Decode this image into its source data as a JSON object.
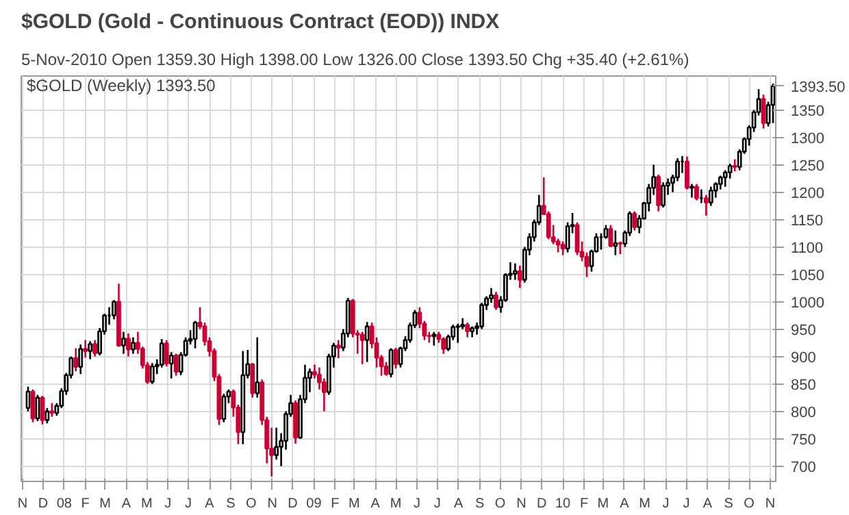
{
  "chart_data": {
    "type": "candlestick",
    "title": "$GOLD (Gold - Continuous Contract (EOD)) INDX",
    "subtitle": "5-Nov-2010",
    "annotations": [
      "Open 1359.30  High 1398.00  Low 1326.00  Close 1393.50  Chg +35.40 (+2.61%)",
      "$GOLD (Weekly) 1393.50"
    ],
    "x": [
      "2007-11-09",
      "2007-11-16",
      "2007-11-23",
      "2007-11-30",
      "2007-12-07",
      "2007-12-14",
      "2007-12-21",
      "2007-12-28",
      "2008-01-04",
      "2008-01-11",
      "2008-01-18",
      "2008-01-25",
      "2008-02-01",
      "2008-02-08",
      "2008-02-15",
      "2008-02-22",
      "2008-02-29",
      "2008-03-07",
      "2008-03-14",
      "2008-03-21",
      "2008-03-28",
      "2008-04-04",
      "2008-04-11",
      "2008-04-18",
      "2008-04-25",
      "2008-05-02",
      "2008-05-09",
      "2008-05-16",
      "2008-05-23",
      "2008-05-30",
      "2008-06-06",
      "2008-06-13",
      "2008-06-20",
      "2008-06-27",
      "2008-07-04",
      "2008-07-11",
      "2008-07-18",
      "2008-07-25",
      "2008-08-01",
      "2008-08-08",
      "2008-08-15",
      "2008-08-22",
      "2008-08-29",
      "2008-09-05",
      "2008-09-12",
      "2008-09-19",
      "2008-09-26",
      "2008-10-03",
      "2008-10-10",
      "2008-10-17",
      "2008-10-24",
      "2008-10-31",
      "2008-11-07",
      "2008-11-14",
      "2008-11-21",
      "2008-11-28",
      "2008-12-05",
      "2008-12-12",
      "2008-12-19",
      "2008-12-26",
      "2009-01-02",
      "2009-01-09",
      "2009-01-16",
      "2009-01-23",
      "2009-01-30",
      "2009-02-06",
      "2009-02-13",
      "2009-02-20",
      "2009-02-27",
      "2009-03-06",
      "2009-03-13",
      "2009-03-20",
      "2009-03-27",
      "2009-04-03",
      "2009-04-10",
      "2009-04-17",
      "2009-04-24",
      "2009-05-01",
      "2009-05-08",
      "2009-05-15",
      "2009-05-22",
      "2009-05-29",
      "2009-06-05",
      "2009-06-12",
      "2009-06-19",
      "2009-06-26",
      "2009-07-03",
      "2009-07-10",
      "2009-07-17",
      "2009-07-24",
      "2009-07-31",
      "2009-08-07",
      "2009-08-14",
      "2009-08-21",
      "2009-08-28",
      "2009-09-04",
      "2009-09-11",
      "2009-09-18",
      "2009-09-25",
      "2009-10-02",
      "2009-10-09",
      "2009-10-16",
      "2009-10-23",
      "2009-10-30",
      "2009-11-06",
      "2009-11-13",
      "2009-11-20",
      "2009-11-27",
      "2009-12-04",
      "2009-12-11",
      "2009-12-18",
      "2009-12-25",
      "2010-01-01",
      "2010-01-08",
      "2010-01-15",
      "2010-01-22",
      "2010-01-29",
      "2010-02-05",
      "2010-02-12",
      "2010-02-19",
      "2010-02-26",
      "2010-03-05",
      "2010-03-12",
      "2010-03-19",
      "2010-03-26",
      "2010-04-02",
      "2010-04-09",
      "2010-04-16",
      "2010-04-23",
      "2010-04-30",
      "2010-05-07",
      "2010-05-14",
      "2010-05-21",
      "2010-05-28",
      "2010-06-04",
      "2010-06-11",
      "2010-06-18",
      "2010-06-25",
      "2010-07-02",
      "2010-07-09",
      "2010-07-16",
      "2010-07-23",
      "2010-07-30",
      "2010-08-06",
      "2010-08-13",
      "2010-08-20",
      "2010-08-27",
      "2010-09-03",
      "2010-09-10",
      "2010-09-17",
      "2010-09-24",
      "2010-10-01",
      "2010-10-08",
      "2010-10-15",
      "2010-10-22",
      "2010-10-29",
      "2010-11-05"
    ],
    "ohlc": [
      [
        806,
        845,
        800,
        836
      ],
      [
        836,
        840,
        780,
        787
      ],
      [
        787,
        830,
        782,
        825
      ],
      [
        825,
        828,
        776,
        784
      ],
      [
        784,
        806,
        778,
        800
      ],
      [
        800,
        815,
        790,
        797
      ],
      [
        797,
        815,
        792,
        810
      ],
      [
        810,
        842,
        806,
        837
      ],
      [
        837,
        870,
        830,
        866
      ],
      [
        866,
        900,
        860,
        897
      ],
      [
        897,
        915,
        873,
        881
      ],
      [
        881,
        922,
        868,
        914
      ],
      [
        914,
        930,
        898,
        910
      ],
      [
        910,
        928,
        895,
        923
      ],
      [
        923,
        930,
        900,
        906
      ],
      [
        906,
        952,
        902,
        946
      ],
      [
        946,
        978,
        940,
        975
      ],
      [
        975,
        990,
        958,
        975
      ],
      [
        975,
        1003,
        968,
        1000
      ],
      [
        1000,
        1033,
        918,
        920
      ],
      [
        920,
        945,
        905,
        933
      ],
      [
        933,
        942,
        900,
        913
      ],
      [
        913,
        935,
        905,
        925
      ],
      [
        925,
        945,
        905,
        914
      ],
      [
        914,
        918,
        878,
        884
      ],
      [
        884,
        890,
        850,
        854
      ],
      [
        854,
        888,
        850,
        882
      ],
      [
        882,
        895,
        868,
        885
      ],
      [
        885,
        932,
        880,
        924
      ],
      [
        924,
        930,
        882,
        887
      ],
      [
        887,
        908,
        860,
        902
      ],
      [
        902,
        905,
        865,
        872
      ],
      [
        872,
        908,
        866,
        903
      ],
      [
        903,
        935,
        900,
        929
      ],
      [
        929,
        948,
        922,
        932
      ],
      [
        932,
        965,
        915,
        962
      ],
      [
        962,
        990,
        950,
        955
      ],
      [
        955,
        962,
        920,
        928
      ],
      [
        928,
        935,
        900,
        910
      ],
      [
        910,
        915,
        855,
        863
      ],
      [
        863,
        868,
        775,
        786
      ],
      [
        786,
        832,
        780,
        827
      ],
      [
        827,
        840,
        815,
        836
      ],
      [
        836,
        840,
        790,
        807
      ],
      [
        807,
        812,
        740,
        762
      ],
      [
        762,
        910,
        740,
        866
      ],
      [
        866,
        912,
        860,
        886
      ],
      [
        886,
        888,
        825,
        833
      ],
      [
        833,
        935,
        825,
        853
      ],
      [
        853,
        858,
        775,
        784
      ],
      [
        784,
        790,
        705,
        732
      ],
      [
        732,
        770,
        681,
        720
      ],
      [
        720,
        770,
        712,
        735
      ],
      [
        735,
        760,
        700,
        746
      ],
      [
        746,
        800,
        730,
        795
      ],
      [
        795,
        830,
        790,
        815
      ],
      [
        815,
        820,
        741,
        752
      ],
      [
        752,
        830,
        750,
        822
      ],
      [
        822,
        885,
        815,
        861
      ],
      [
        861,
        878,
        835,
        872
      ],
      [
        872,
        885,
        860,
        867
      ],
      [
        867,
        880,
        840,
        853
      ],
      [
        853,
        860,
        800,
        835
      ],
      [
        835,
        905,
        830,
        900
      ],
      [
        900,
        925,
        880,
        920
      ],
      [
        920,
        930,
        897,
        916
      ],
      [
        916,
        950,
        910,
        942
      ],
      [
        942,
        1007,
        935,
        1002
      ],
      [
        1002,
        1005,
        935,
        942
      ],
      [
        942,
        948,
        905,
        940
      ],
      [
        940,
        945,
        886,
        930
      ],
      [
        930,
        963,
        890,
        955
      ],
      [
        955,
        962,
        915,
        924
      ],
      [
        924,
        935,
        880,
        898
      ],
      [
        898,
        903,
        865,
        882
      ],
      [
        882,
        890,
        865,
        868
      ],
      [
        868,
        915,
        862,
        912
      ],
      [
        912,
        916,
        878,
        886
      ],
      [
        886,
        918,
        880,
        915
      ],
      [
        915,
        937,
        910,
        930
      ],
      [
        930,
        962,
        925,
        957
      ],
      [
        957,
        985,
        952,
        980
      ],
      [
        980,
        990,
        952,
        960
      ],
      [
        960,
        965,
        930,
        938
      ],
      [
        938,
        945,
        925,
        937
      ],
      [
        937,
        945,
        920,
        940
      ],
      [
        940,
        945,
        925,
        932
      ],
      [
        932,
        935,
        905,
        914
      ],
      [
        914,
        940,
        910,
        936
      ],
      [
        936,
        958,
        930,
        954
      ],
      [
        954,
        960,
        925,
        955
      ],
      [
        955,
        970,
        950,
        958
      ],
      [
        958,
        962,
        935,
        946
      ],
      [
        946,
        955,
        935,
        952
      ],
      [
        952,
        962,
        940,
        955
      ],
      [
        955,
        998,
        950,
        994
      ],
      [
        994,
        1010,
        985,
        1006
      ],
      [
        1006,
        1025,
        998,
        1012
      ],
      [
        1012,
        1018,
        985,
        990
      ],
      [
        990,
        1010,
        980,
        1003
      ],
      [
        1003,
        1052,
        1000,
        1049
      ],
      [
        1049,
        1072,
        1040,
        1051
      ],
      [
        1051,
        1070,
        1040,
        1056
      ],
      [
        1056,
        1066,
        1025,
        1040
      ],
      [
        1040,
        1100,
        1035,
        1095
      ],
      [
        1095,
        1125,
        1085,
        1118
      ],
      [
        1118,
        1150,
        1110,
        1145
      ],
      [
        1145,
        1195,
        1140,
        1175
      ],
      [
        1175,
        1227,
        1160,
        1160
      ],
      [
        1160,
        1165,
        1114,
        1118
      ],
      [
        1118,
        1140,
        1105,
        1110
      ],
      [
        1110,
        1115,
        1090,
        1104
      ],
      [
        1104,
        1110,
        1085,
        1097
      ],
      [
        1097,
        1145,
        1090,
        1138
      ],
      [
        1138,
        1162,
        1125,
        1140
      ],
      [
        1140,
        1145,
        1085,
        1091
      ],
      [
        1091,
        1110,
        1074,
        1082
      ],
      [
        1082,
        1090,
        1045,
        1065
      ],
      [
        1065,
        1095,
        1055,
        1092
      ],
      [
        1092,
        1125,
        1090,
        1118
      ],
      [
        1118,
        1125,
        1095,
        1118
      ],
      [
        1118,
        1140,
        1115,
        1133
      ],
      [
        1133,
        1140,
        1100,
        1102
      ],
      [
        1102,
        1130,
        1085,
        1107
      ],
      [
        1107,
        1110,
        1087,
        1106
      ],
      [
        1106,
        1130,
        1100,
        1126
      ],
      [
        1126,
        1165,
        1120,
        1161
      ],
      [
        1161,
        1165,
        1130,
        1136
      ],
      [
        1136,
        1158,
        1125,
        1152
      ],
      [
        1152,
        1182,
        1150,
        1180
      ],
      [
        1180,
        1215,
        1165,
        1208
      ],
      [
        1208,
        1250,
        1195,
        1228
      ],
      [
        1228,
        1232,
        1165,
        1176
      ],
      [
        1176,
        1218,
        1172,
        1212
      ],
      [
        1212,
        1225,
        1195,
        1217
      ],
      [
        1217,
        1232,
        1200,
        1227
      ],
      [
        1227,
        1262,
        1220,
        1256
      ],
      [
        1256,
        1266,
        1235,
        1256
      ],
      [
        1256,
        1265,
        1205,
        1208
      ],
      [
        1208,
        1215,
        1190,
        1210
      ],
      [
        1210,
        1215,
        1185,
        1189
      ],
      [
        1189,
        1205,
        1180,
        1189
      ],
      [
        1189,
        1195,
        1157,
        1181
      ],
      [
        1181,
        1210,
        1175,
        1203
      ],
      [
        1203,
        1218,
        1190,
        1215
      ],
      [
        1215,
        1230,
        1205,
        1227
      ],
      [
        1227,
        1240,
        1210,
        1236
      ],
      [
        1236,
        1252,
        1225,
        1248
      ],
      [
        1248,
        1260,
        1238,
        1246
      ],
      [
        1246,
        1278,
        1240,
        1274
      ],
      [
        1274,
        1300,
        1270,
        1297
      ],
      [
        1297,
        1322,
        1285,
        1318
      ],
      [
        1318,
        1350,
        1310,
        1346
      ],
      [
        1346,
        1388,
        1340,
        1370
      ],
      [
        1370,
        1378,
        1316,
        1326
      ],
      [
        1326,
        1365,
        1320,
        1359
      ],
      [
        1359.3,
        1398,
        1326,
        1393.5
      ]
    ],
    "xlim": [
      "2007-10-30",
      "2010-11-09"
    ],
    "xticks": [
      {
        "value": "2007-11-01",
        "label": "N"
      },
      {
        "value": "2007-12-01",
        "label": "D"
      },
      {
        "value": "2008-01-01",
        "label": "08"
      },
      {
        "value": "2008-02-01",
        "label": "F"
      },
      {
        "value": "2008-03-01",
        "label": "M"
      },
      {
        "value": "2008-04-01",
        "label": "A"
      },
      {
        "value": "2008-05-01",
        "label": "M"
      },
      {
        "value": "2008-06-01",
        "label": "J"
      },
      {
        "value": "2008-07-01",
        "label": "J"
      },
      {
        "value": "2008-08-01",
        "label": "A"
      },
      {
        "value": "2008-09-01",
        "label": "S"
      },
      {
        "value": "2008-10-01",
        "label": "O"
      },
      {
        "value": "2008-11-01",
        "label": "N"
      },
      {
        "value": "2008-12-01",
        "label": "D"
      },
      {
        "value": "2009-01-01",
        "label": "09"
      },
      {
        "value": "2009-02-01",
        "label": "F"
      },
      {
        "value": "2009-03-01",
        "label": "M"
      },
      {
        "value": "2009-04-01",
        "label": "A"
      },
      {
        "value": "2009-05-01",
        "label": "M"
      },
      {
        "value": "2009-06-01",
        "label": "J"
      },
      {
        "value": "2009-07-01",
        "label": "J"
      },
      {
        "value": "2009-08-01",
        "label": "A"
      },
      {
        "value": "2009-09-01",
        "label": "S"
      },
      {
        "value": "2009-10-01",
        "label": "O"
      },
      {
        "value": "2009-11-01",
        "label": "N"
      },
      {
        "value": "2009-12-01",
        "label": "D"
      },
      {
        "value": "2010-01-01",
        "label": "10"
      },
      {
        "value": "2010-02-01",
        "label": "F"
      },
      {
        "value": "2010-03-01",
        "label": "M"
      },
      {
        "value": "2010-04-01",
        "label": "A"
      },
      {
        "value": "2010-05-01",
        "label": "M"
      },
      {
        "value": "2010-06-01",
        "label": "J"
      },
      {
        "value": "2010-07-01",
        "label": "J"
      },
      {
        "value": "2010-08-01",
        "label": "A"
      },
      {
        "value": "2010-09-01",
        "label": "S"
      },
      {
        "value": "2010-10-01",
        "label": "O"
      },
      {
        "value": "2010-11-01",
        "label": "N"
      }
    ],
    "ylim": [
      672,
      1412
    ],
    "yticks": [
      700,
      750,
      800,
      850,
      900,
      950,
      1000,
      1050,
      1100,
      1150,
      1200,
      1250,
      1300,
      1350,
      {
        "value": 1393.5,
        "label": "1393.50"
      }
    ],
    "grid": true
  }
}
